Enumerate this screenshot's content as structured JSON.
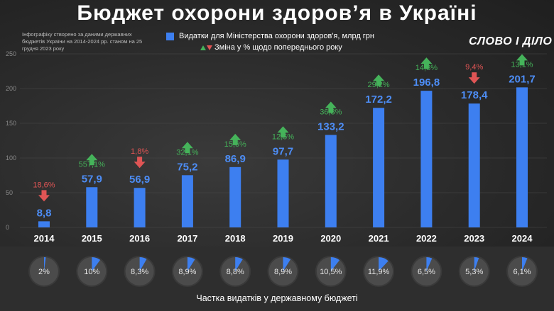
{
  "title": "Бюджет охорони здоров’я в Україні",
  "source_note": "Інфографіку створено за даними державних бюджетів України на 2014-2024 рр. станом на 25 грудня 2023 року",
  "logo": "СЛОВО І ДІЛО",
  "share_label": "Частка видатків у державному бюджеті",
  "colors": {
    "bar": "#3d7ff0",
    "value_text": "#4d8df5",
    "up": "#45b35a",
    "down": "#e05555",
    "share_fill": "#3d7ff0"
  },
  "chart_data": {
    "type": "bar",
    "categories": [
      "2014",
      "2015",
      "2016",
      "2017",
      "2018",
      "2019",
      "2020",
      "2021",
      "2022",
      "2023",
      "2024"
    ],
    "series": [
      {
        "name": "Видатки для Міністерства охорони здоров'я, млрд грн",
        "values": [
          8.8,
          57.9,
          56.9,
          75.2,
          86.9,
          97.7,
          133.2,
          172.2,
          196.8,
          178.4,
          201.7
        ],
        "labels": [
          "8,8",
          "57,9",
          "56,9",
          "75,2",
          "86,9",
          "97,7",
          "133,2",
          "172,2",
          "196,8",
          "178,4",
          "201,7"
        ]
      }
    ],
    "change": {
      "name": "Зміна у % щодо попереднього року",
      "labels": [
        "18,6%",
        "557,1%",
        "1,8%",
        "32,1%",
        "15,6%",
        "12,5%",
        "36,3%",
        "29,2%",
        "14,3%",
        "9,4%",
        "13,1%"
      ],
      "direction": [
        "down",
        "up",
        "down",
        "up",
        "up",
        "up",
        "up",
        "up",
        "up",
        "down",
        "up"
      ]
    },
    "share": {
      "values": [
        2,
        10,
        8.3,
        8.9,
        8.8,
        8.9,
        10.5,
        11.9,
        6.5,
        5.3,
        6.1
      ],
      "labels": [
        "2%",
        "10%",
        "8,3%",
        "8,9%",
        "8,8%",
        "8,9%",
        "10,5%",
        "11,9%",
        "6,5%",
        "5,3%",
        "6,1%"
      ]
    },
    "ylim": [
      0,
      250
    ],
    "yticks": [
      "0",
      "50",
      "100",
      "150",
      "200",
      "250"
    ],
    "legend": "top-center",
    "grid": true
  }
}
